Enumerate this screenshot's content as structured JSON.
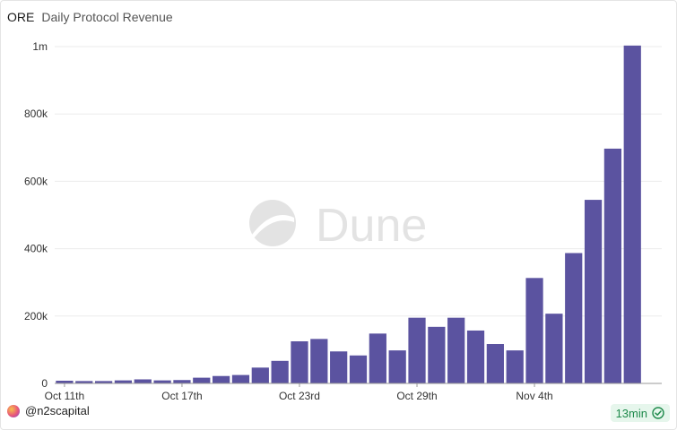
{
  "header": {
    "project": "ORE",
    "title": "Daily Protocol Revenue"
  },
  "watermark": {
    "text": "Dune"
  },
  "footer": {
    "author": "@n2scapital",
    "refresh": "13min"
  },
  "colors": {
    "bar": "#5b53a0",
    "grid": "#ebebeb",
    "axis_text": "#333333"
  },
  "chart_data": {
    "type": "bar",
    "title": "Daily Protocol Revenue",
    "xlabel": "",
    "ylabel": "",
    "ylim": [
      0,
      1000000
    ],
    "yticks": [
      0,
      200000,
      400000,
      600000,
      800000,
      1000000
    ],
    "ytick_labels": [
      "0",
      "200k",
      "400k",
      "600k",
      "800k",
      "1m"
    ],
    "xtick_labels": [
      {
        "index": 0,
        "label": "Oct 11th"
      },
      {
        "index": 6,
        "label": "Oct 17th"
      },
      {
        "index": 12,
        "label": "Oct 23rd"
      },
      {
        "index": 18,
        "label": "Oct 29th"
      },
      {
        "index": 24,
        "label": "Nov 4th"
      }
    ],
    "categories": [
      "Oct 11",
      "Oct 12",
      "Oct 13",
      "Oct 14",
      "Oct 15",
      "Oct 16",
      "Oct 17",
      "Oct 18",
      "Oct 19",
      "Oct 20",
      "Oct 21",
      "Oct 22",
      "Oct 23",
      "Oct 24",
      "Oct 25",
      "Oct 26",
      "Oct 27",
      "Oct 28",
      "Oct 29",
      "Oct 30",
      "Oct 31",
      "Nov 1",
      "Nov 2",
      "Nov 3",
      "Nov 4",
      "Nov 5",
      "Nov 6",
      "Nov 7",
      "Nov 8",
      "Nov 9",
      "Nov 10"
    ],
    "values": [
      8000,
      7000,
      7000,
      9000,
      12000,
      9000,
      10000,
      17000,
      22000,
      25000,
      47000,
      67000,
      125000,
      132000,
      95000,
      83000,
      148000,
      98000,
      195000,
      168000,
      195000,
      157000,
      117000,
      98000,
      313000,
      207000,
      387000,
      545000,
      697000,
      1003000,
      0
    ]
  }
}
